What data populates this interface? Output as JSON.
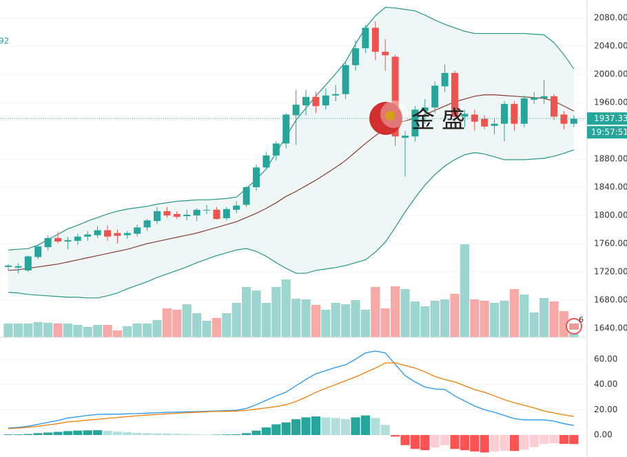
{
  "chart_data": [
    {
      "type": "candlestick",
      "open": [
        1727,
        1726,
        1722,
        1741,
        1755,
        1768,
        1763,
        1764,
        1770,
        1772,
        1779,
        1775,
        1772,
        1774,
        1783,
        1792,
        1806,
        1802,
        1799,
        1800,
        1807,
        1808,
        1796,
        1808,
        1815,
        1840,
        1868,
        1885,
        1902,
        1942,
        1956,
        1968,
        1956,
        1970,
        1972,
        2013,
        2037,
        2066,
        2032,
        2025,
        1910,
        1912,
        1948,
        1953,
        1983,
        2002,
        1940,
        1943,
        1937,
        1927,
        1930,
        1958,
        1930,
        1964,
        1966,
        1969,
        1943,
        1930
      ],
      "high": [
        1731,
        1732,
        1743,
        1758,
        1772,
        1777,
        1770,
        1774,
        1778,
        1785,
        1786,
        1780,
        1778,
        1787,
        1795,
        1812,
        1812,
        1806,
        1808,
        1810,
        1815,
        1812,
        1812,
        1820,
        1842,
        1872,
        1890,
        1905,
        1945,
        1978,
        1978,
        1975,
        1980,
        1985,
        2018,
        2048,
        2070,
        2075,
        2050,
        2028,
        1920,
        1955,
        1965,
        1990,
        2014,
        2005,
        1950,
        1950,
        1942,
        1938,
        1962,
        1962,
        1970,
        1975,
        1992,
        1972,
        1948,
        1942
      ],
      "low": [
        1722,
        1718,
        1720,
        1738,
        1750,
        1760,
        1752,
        1758,
        1764,
        1768,
        1764,
        1760,
        1767,
        1770,
        1778,
        1788,
        1797,
        1795,
        1793,
        1792,
        1802,
        1794,
        1793,
        1803,
        1812,
        1835,
        1865,
        1878,
        1895,
        1900,
        1942,
        1945,
        1950,
        1962,
        1965,
        2005,
        2030,
        2020,
        2005,
        1898,
        1855,
        1905,
        1930,
        1945,
        1975,
        1925,
        1925,
        1920,
        1922,
        1915,
        1905,
        1920,
        1925,
        1958,
        1958,
        1935,
        1922,
        1925
      ],
      "close": [
        1729,
        1728,
        1742,
        1756,
        1768,
        1763,
        1765,
        1770,
        1773,
        1779,
        1770,
        1771,
        1775,
        1783,
        1793,
        1806,
        1800,
        1798,
        1801,
        1808,
        1808,
        1795,
        1809,
        1814,
        1840,
        1868,
        1885,
        1902,
        1943,
        1957,
        1968,
        1955,
        1970,
        1972,
        2013,
        2037,
        2066,
        2032,
        2027,
        1912,
        1913,
        1950,
        1953,
        1984,
        2002,
        1940,
        1944,
        1933,
        1926,
        1930,
        1958,
        1930,
        1966,
        1967,
        1969,
        1940,
        1930,
        1937
      ],
      "volume": [
        20,
        20,
        20,
        22,
        21,
        20,
        20,
        18,
        15,
        18,
        18,
        10,
        16,
        20,
        20,
        25,
        42,
        40,
        48,
        35,
        24,
        28,
        35,
        50,
        73,
        68,
        50,
        73,
        84,
        56,
        55,
        47,
        40,
        50,
        48,
        54,
        40,
        73,
        42,
        74,
        70,
        52,
        45,
        53,
        55,
        63,
        135,
        55,
        53,
        50,
        53,
        70,
        62,
        36,
        57,
        52,
        38,
        25
      ],
      "up_color": "#26a69a",
      "down_color": "#ef5350",
      "volume_up_color": "#9dd6d0",
      "volume_down_color": "#f6a9a7",
      "series": [
        {
          "color": "#23958b",
          "values": [
            1751,
            1752,
            1753,
            1758,
            1766,
            1773,
            1781,
            1786,
            1792,
            1797,
            1802,
            1806,
            1809,
            1811,
            1813,
            1816,
            1818,
            1820,
            1821,
            1822,
            1822,
            1823,
            1824,
            1826,
            1838,
            1851,
            1866,
            1889,
            1912,
            1935,
            1952,
            1969,
            1985,
            2001,
            2018,
            2043,
            2066,
            2083,
            2095,
            2094,
            2092,
            2090,
            2084,
            2077,
            2071,
            2066,
            2061,
            2058,
            2058,
            2058,
            2058,
            2058,
            2058,
            2057,
            2056,
            2045,
            2028,
            2008
          ]
        },
        {
          "color": "#8b3a30",
          "values": [
            1722,
            1723,
            1725,
            1727,
            1729,
            1731,
            1734,
            1737,
            1740,
            1743,
            1746,
            1749,
            1752,
            1756,
            1760,
            1763,
            1766,
            1769,
            1772,
            1775,
            1779,
            1783,
            1787,
            1791,
            1797,
            1803,
            1810,
            1818,
            1827,
            1834,
            1842,
            1850,
            1859,
            1868,
            1878,
            1890,
            1902,
            1913,
            1923,
            1930,
            1934,
            1938,
            1943,
            1949,
            1955,
            1961,
            1965,
            1969,
            1971,
            1971,
            1970,
            1969,
            1968,
            1967,
            1966,
            1962,
            1955,
            1948
          ]
        },
        {
          "color": "#23958b",
          "values": [
            1691,
            1690,
            1688,
            1687,
            1686,
            1685,
            1684,
            1684,
            1683,
            1683,
            1686,
            1690,
            1696,
            1701,
            1706,
            1712,
            1717,
            1722,
            1727,
            1733,
            1738,
            1743,
            1747,
            1751,
            1753,
            1749,
            1742,
            1733,
            1725,
            1718,
            1718,
            1722,
            1724,
            1726,
            1729,
            1733,
            1737,
            1748,
            1762,
            1783,
            1805,
            1825,
            1843,
            1858,
            1870,
            1879,
            1886,
            1889,
            1887,
            1883,
            1879,
            1879,
            1879,
            1880,
            1881,
            1884,
            1888,
            1893
          ]
        }
      ],
      "band_fill": "#eef7f6",
      "ylim": [
        1627.3,
        2105.4
      ],
      "yticks": [
        {
          "value": 2080,
          "label": "2080.00"
        },
        {
          "value": 2040,
          "label": "2040.00"
        },
        {
          "value": 2000,
          "label": "2000.00"
        },
        {
          "value": 1960,
          "label": "1960.00"
        },
        {
          "value": 1880,
          "label": "1880.00"
        },
        {
          "value": 1840,
          "label": "1840.00"
        },
        {
          "value": 1800,
          "label": "1800.00"
        },
        {
          "value": 1760,
          "label": "1760.00"
        },
        {
          "value": 1720,
          "label": "1720.00"
        },
        {
          "value": 1680,
          "label": "1680.00"
        },
        {
          "value": 1640,
          "label": "1640.00"
        }
      ],
      "grid": true,
      "last_price": 1937.33,
      "countdown": "19:57:51",
      "legend_fragment": "92",
      "watermark": "金盛",
      "event_count": "6"
    },
    {
      "type": "macd",
      "series": [
        {
          "color": "#2196f3",
          "values": [
            5.5,
            6,
            7,
            8.5,
            10,
            11.5,
            13.5,
            14.5,
            15.5,
            16.3,
            16.5,
            16.5,
            16.8,
            17,
            17.3,
            17.6,
            18,
            18.2,
            18.4,
            18.5,
            18.8,
            19,
            19.3,
            19.6,
            21,
            24,
            27.5,
            31,
            34,
            39,
            44,
            48.5,
            51,
            53.5,
            55.6,
            60,
            65,
            66.5,
            65,
            56,
            47,
            42,
            38,
            36.5,
            36,
            31,
            27,
            23,
            20,
            18,
            15.5,
            13,
            12,
            12,
            12,
            11,
            9,
            7.6
          ]
        },
        {
          "color": "#f57c00",
          "values": [
            5,
            5.5,
            6.2,
            7,
            8,
            9,
            10.4,
            11,
            11.8,
            12.5,
            13.2,
            13.8,
            14.6,
            15.3,
            15.8,
            16.3,
            16.8,
            17.2,
            17.6,
            18,
            18.5,
            18.7,
            18.8,
            19,
            19.5,
            20.5,
            21.5,
            22.5,
            24,
            26.5,
            30,
            33.8,
            37,
            40,
            43,
            46,
            49.5,
            53,
            57,
            57.2,
            55,
            53,
            50,
            46.3,
            44,
            42,
            39,
            36,
            33.8,
            31,
            28,
            25.6,
            23.5,
            21.5,
            19,
            17.5,
            16,
            14.7
          ]
        }
      ],
      "histogram": [
        0.5,
        0.5,
        0.8,
        1.5,
        2,
        2.5,
        3.1,
        3.5,
        3.7,
        3.8,
        3.3,
        2.7,
        2.2,
        1.7,
        1.5,
        1.3,
        1.2,
        1,
        0.8,
        0.5,
        0.3,
        0.3,
        0.5,
        0.6,
        1.5,
        3.5,
        6,
        8.5,
        10,
        12.5,
        14,
        14.7,
        14,
        13.5,
        12.6,
        14,
        15.5,
        13.5,
        8,
        -1.2,
        -8,
        -11,
        -12,
        -9.8,
        -8,
        -11,
        -12,
        -13,
        -13.8,
        -13,
        -12.5,
        -12.6,
        -11.5,
        -9.5,
        -7,
        -6.5,
        -7,
        -7.1
      ],
      "histogram_colors": [
        "#26a69a",
        "#b2dfdb",
        "#ff5252",
        "#ffcdd2"
      ],
      "ylim": [
        -17.4,
        74.7
      ],
      "yticks": [
        {
          "value": 60,
          "label": "60.00"
        },
        {
          "value": 40,
          "label": "40.00"
        },
        {
          "value": 20,
          "label": "20.00"
        },
        {
          "value": 0,
          "label": "0.00"
        }
      ],
      "grid": true
    }
  ]
}
